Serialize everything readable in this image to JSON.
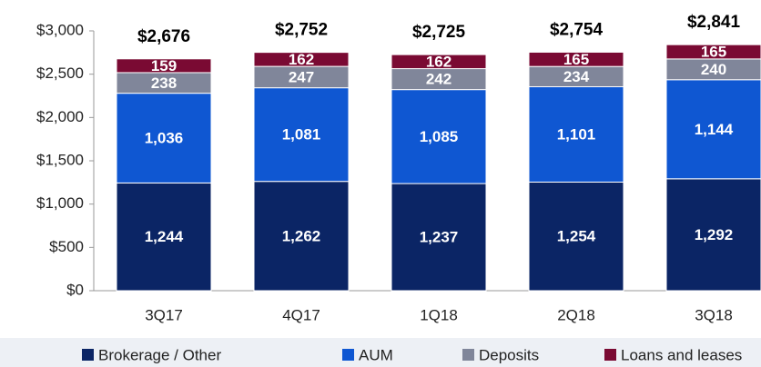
{
  "chart_data": {
    "type": "stacked_bar",
    "categories": [
      "3Q17",
      "4Q17",
      "1Q18",
      "2Q18",
      "3Q18"
    ],
    "series": [
      {
        "name": "Brokerage / Other",
        "color": "#0b2565",
        "values": [
          1244,
          1262,
          1237,
          1254,
          1292
        ],
        "value_labels": [
          "1,244",
          "1,262",
          "1,237",
          "1,254",
          "1,292"
        ]
      },
      {
        "name": "AUM",
        "color": "#0f57d2",
        "values": [
          1036,
          1081,
          1085,
          1101,
          1144
        ],
        "value_labels": [
          "1,036",
          "1,081",
          "1,085",
          "1,101",
          "1,144"
        ]
      },
      {
        "name": "Deposits",
        "color": "#80869a",
        "values": [
          238,
          247,
          242,
          234,
          240
        ]
      },
      {
        "name": "Loans and leases",
        "color": "#7a0a33",
        "values": [
          159,
          162,
          162,
          165,
          165
        ]
      }
    ],
    "totals": [
      2676,
      2752,
      2725,
      2754,
      2841
    ],
    "total_labels": [
      "$2,676",
      "$2,752",
      "$2,725",
      "$2,754",
      "$2,841"
    ],
    "ylim": [
      0,
      3000
    ],
    "yticks": [
      {
        "value": 0,
        "label": "$0"
      },
      {
        "value": 500,
        "label": "$500"
      },
      {
        "value": 1000,
        "label": "$1,000"
      },
      {
        "value": 1500,
        "label": "$1,500"
      },
      {
        "value": 2000,
        "label": "$2,000"
      },
      {
        "value": 2500,
        "label": "$2,500"
      },
      {
        "value": 3000,
        "label": "$3,000"
      }
    ]
  }
}
